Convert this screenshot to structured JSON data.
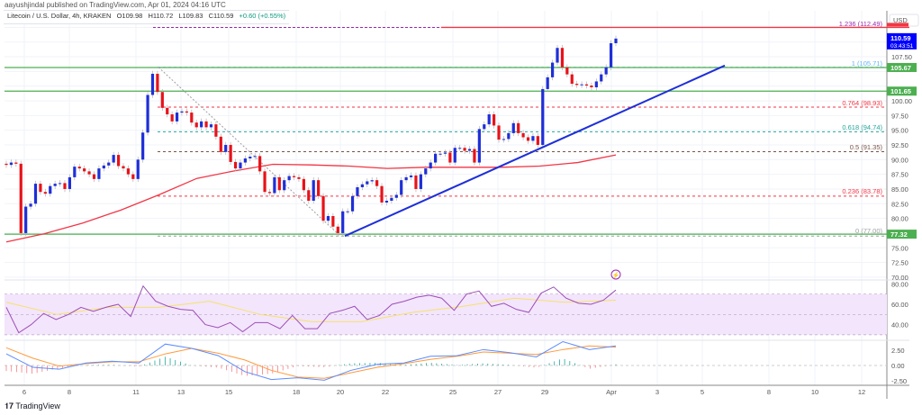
{
  "header": {
    "published": "aayushjindal published on TradingView.com, Apr 01, 2024 04:16 UTC",
    "symbol": "Litecoin / U.S. Dollar, 4h, KRAKEN",
    "open": "O109.98",
    "high": "H110.72",
    "low": "L109.83",
    "close": "C110.59",
    "change": "+0.60 (+0.55%)"
  },
  "price_axis": {
    "currency": "USD",
    "ticks": [
      "107.50",
      "100.00",
      "97.50",
      "95.00",
      "92.50",
      "90.00",
      "87.50",
      "85.00",
      "82.50",
      "80.00",
      "75.00",
      "72.50",
      "70.00"
    ],
    "badges": [
      {
        "label": "112.49",
        "color": "#f23645"
      },
      {
        "label": "110.59",
        "sub": "03:43:51",
        "color": "#0000ff"
      },
      {
        "label": "105.67",
        "color": "#4caf50"
      },
      {
        "label": "101.65",
        "color": "#4caf50"
      },
      {
        "label": "77.32",
        "color": "#4caf50"
      }
    ]
  },
  "rsi_axis": {
    "ticks": [
      "80.00",
      "60.00",
      "40.00"
    ]
  },
  "macd_axis": {
    "ticks": [
      "2.50",
      "0.00",
      "-2.50"
    ]
  },
  "date_axis": [
    "6",
    "8",
    "11",
    "13",
    "15",
    "18",
    "20",
    "22",
    "25",
    "27",
    "29",
    "Apr",
    "3",
    "5",
    "8",
    "10",
    "12"
  ],
  "fib_levels": [
    {
      "label": "1.236 (112.49)",
      "value": 112.49,
      "color": "#9c27b0"
    },
    {
      "label": "1 (105.71)",
      "value": 105.71,
      "color": "#64b5f6"
    },
    {
      "label": "0.764 (98.93)",
      "value": 98.93,
      "color": "#f23645"
    },
    {
      "label": "0.618 (94.74)",
      "value": 94.74,
      "color": "#26a69a"
    },
    {
      "label": "0.5 (91.35)",
      "value": 91.35,
      "color": "#795548"
    },
    {
      "label": "0.236 (83.78)",
      "value": 83.78,
      "color": "#f23645"
    },
    {
      "label": "0 (77.00)",
      "value": 77.0,
      "color": "#9e9e9e"
    }
  ],
  "brand": "TradingView",
  "colors": {
    "up": "#1e2fd8",
    "down": "#e8121a",
    "ma": "#f23645",
    "trendline": "#1e2fd8",
    "support": "#4caf50",
    "rsi": "#9c4fb5",
    "rsi_ma": "#f5e26b",
    "rsi_band": "#f3e5fc",
    "macd": "#5b8cff",
    "signal": "#ff9a3c",
    "hist_up": "#26a69a",
    "hist_down": "#f77c80"
  },
  "chart_data": {
    "type": "candlestick",
    "title": "Litecoin / U.S. Dollar, 4h, KRAKEN",
    "ylim": [
      70,
      113
    ],
    "x_ticks": [
      "6",
      "8",
      "11",
      "13",
      "15",
      "18",
      "20",
      "22",
      "25",
      "27",
      "29",
      "Apr",
      "3",
      "5",
      "8",
      "10",
      "12"
    ],
    "closes": [
      89.1,
      89.5,
      89.3,
      77.5,
      82,
      82.5,
      85.9,
      84.5,
      84.2,
      85.5,
      85.9,
      86,
      85,
      87,
      88.8,
      88.5,
      88,
      87.5,
      86.7,
      88.5,
      89,
      89.5,
      90.8,
      88.9,
      88.5,
      87.5,
      86.7,
      90,
      94.6,
      101,
      104.6,
      101.5,
      98.8,
      97.7,
      96.5,
      98,
      98.2,
      98,
      96.3,
      95.5,
      96.5,
      95.5,
      96,
      93.9,
      91.3,
      92.5,
      89.6,
      88.5,
      89.5,
      90.2,
      90.5,
      90.6,
      88,
      84.5,
      84.3,
      87,
      84.8,
      86.5,
      87.2,
      87,
      86.7,
      84.8,
      83,
      86.5,
      83.8,
      79.6,
      80.4,
      78.6,
      77.5,
      81.2,
      81.2,
      83.8,
      85.3,
      85.8,
      86.3,
      86.5,
      85.5,
      82.7,
      83,
      83.5,
      84,
      86.5,
      87,
      87.3,
      85,
      87.5,
      88.5,
      89.5,
      91,
      91,
      91.2,
      89.5,
      92,
      92,
      91.5,
      91.8,
      89.5,
      95.2,
      96,
      97.7,
      95.8,
      93.4,
      93.5,
      94.5,
      96.2,
      94.5,
      93.8,
      93.2,
      94,
      92.5,
      102,
      104,
      106.5,
      109,
      105.7,
      104.5,
      102.9,
      102.7,
      102.8,
      102.6,
      102.3,
      103.3,
      104.5,
      105.7,
      109.8,
      110.59
    ],
    "moving_average": [
      76,
      77.4,
      79.2,
      81.4,
      84,
      86.8,
      88.1,
      89.2,
      89.1,
      88.9,
      88.5,
      88.7,
      88.7,
      88.7,
      88.9,
      89.5,
      90.8
    ],
    "horizontal_lines": [
      105.67,
      101.65,
      77.32,
      112.49
    ],
    "trendline": {
      "from": 77.0,
      "to": 106.0
    },
    "rsi": {
      "ylim": [
        25,
        85
      ],
      "band": [
        30,
        70
      ],
      "values": [
        57,
        32,
        40,
        51,
        45,
        50,
        57,
        53,
        57,
        60,
        48,
        78,
        63,
        58,
        55,
        54,
        40,
        37,
        42,
        33,
        42,
        42,
        36,
        49,
        36,
        36,
        51,
        54,
        58,
        45,
        49,
        60,
        63,
        67,
        69,
        66,
        54,
        70,
        73,
        58,
        61,
        55,
        52,
        71,
        77,
        66,
        61,
        60,
        64,
        74
      ],
      "ma": [
        62,
        50,
        57,
        57,
        63,
        50,
        43,
        43,
        52,
        58,
        66,
        62,
        64
      ]
    },
    "macd": {
      "ylim": [
        -3,
        4.5
      ],
      "macd": [
        1.9,
        -0.3,
        -0.6,
        0.4,
        0.7,
        0.4,
        3.5,
        2.8,
        1.6,
        -1.0,
        -2.3,
        -2.0,
        -2.4,
        -0.8,
        0.2,
        0.4,
        1.5,
        1.6,
        2.6,
        2.1,
        1.4,
        3.9,
        2.6,
        3.2
      ],
      "signal": [
        2.9,
        1.2,
        -0.1,
        0.3,
        0.6,
        0.6,
        1.9,
        2.8,
        2.0,
        0.9,
        -0.8,
        -1.9,
        -2.1,
        -1.2,
        -0.3,
        0.3,
        1.0,
        1.5,
        2.2,
        2.0,
        1.8,
        2.6,
        3.2,
        3.0
      ]
    }
  }
}
